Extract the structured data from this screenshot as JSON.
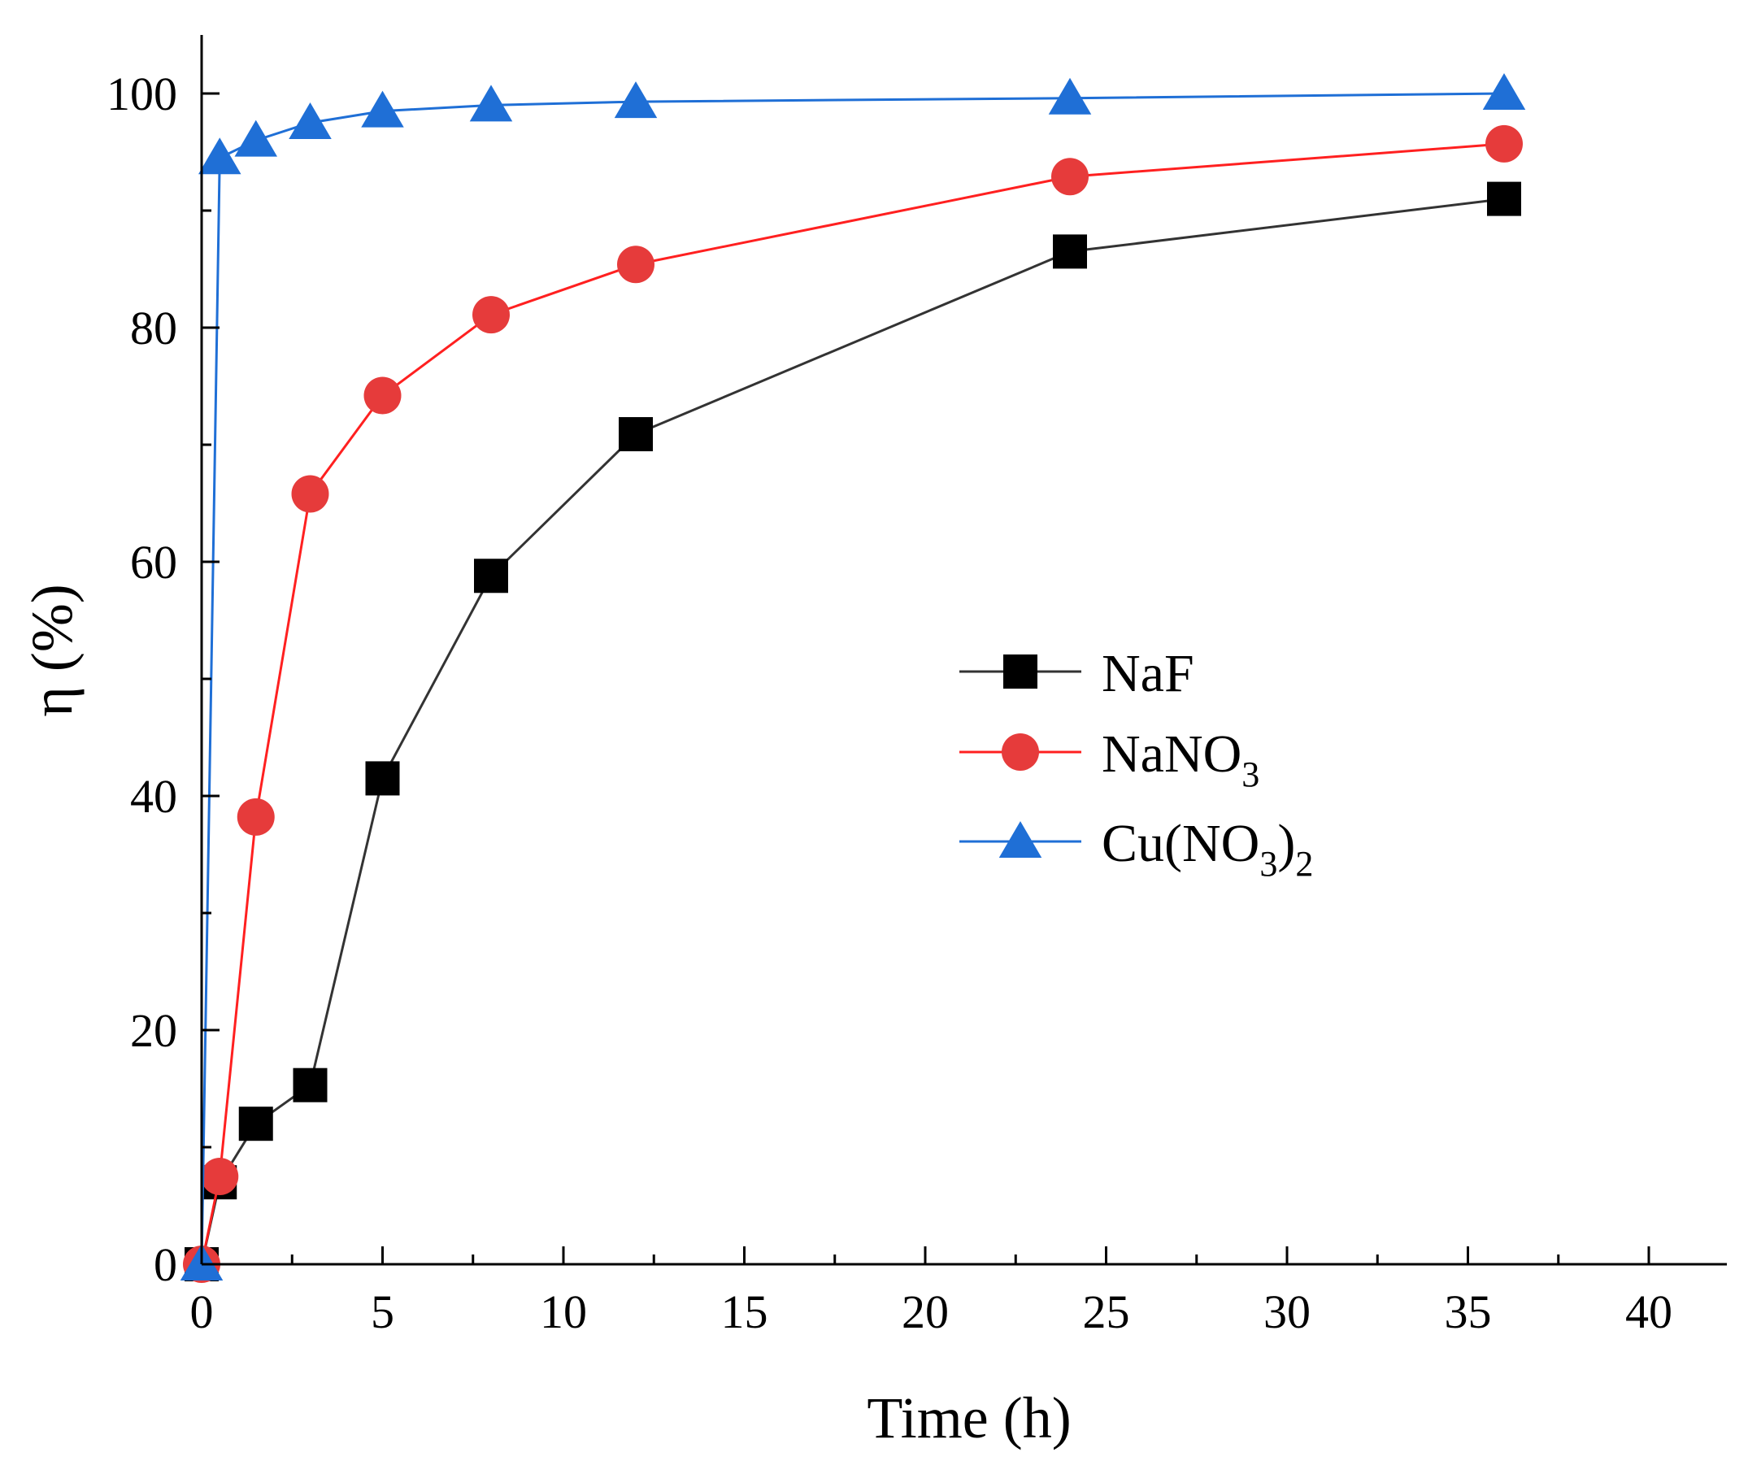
{
  "chart_data": {
    "type": "line",
    "xlabel": "Time (h)",
    "ylabel": "η (%)",
    "xlim": [
      0,
      40
    ],
    "ylim": [
      0,
      100
    ],
    "xticks": [
      0,
      5,
      10,
      15,
      20,
      25,
      30,
      35,
      40
    ],
    "yticks": [
      0,
      20,
      40,
      60,
      80,
      100
    ],
    "series": [
      {
        "name": "NaF",
        "label_parts": [
          "NaF"
        ],
        "color": "#000000",
        "line_color": "#333333",
        "marker": "square",
        "x": [
          0,
          0.5,
          1.5,
          3,
          5,
          8,
          12,
          24,
          36
        ],
        "values": [
          0,
          7,
          12,
          15.3,
          41.5,
          58.8,
          70.9,
          86.5,
          91
        ]
      },
      {
        "name": "NaNO3",
        "label_parts": [
          "NaNO",
          "3"
        ],
        "color": "#e63b3b",
        "line_color": "#ff2020",
        "marker": "circle",
        "x": [
          0,
          0.5,
          1.5,
          3,
          5,
          8,
          12,
          24,
          36
        ],
        "values": [
          0,
          7.5,
          38.2,
          65.8,
          74.2,
          81.1,
          85.4,
          92.9,
          95.7
        ]
      },
      {
        "name": "Cu(NO3)2",
        "label_parts": [
          "Cu(NO",
          "3",
          ")",
          "2"
        ],
        "color": "#1f6fd6",
        "line_color": "#1f6fd6",
        "marker": "triangle",
        "x": [
          0,
          0.5,
          1.5,
          3,
          5,
          8,
          12,
          24,
          36
        ],
        "values": [
          0,
          94.5,
          96,
          97.5,
          98.5,
          99,
          99.3,
          99.6,
          100
        ]
      }
    ],
    "legend": "center-right"
  }
}
